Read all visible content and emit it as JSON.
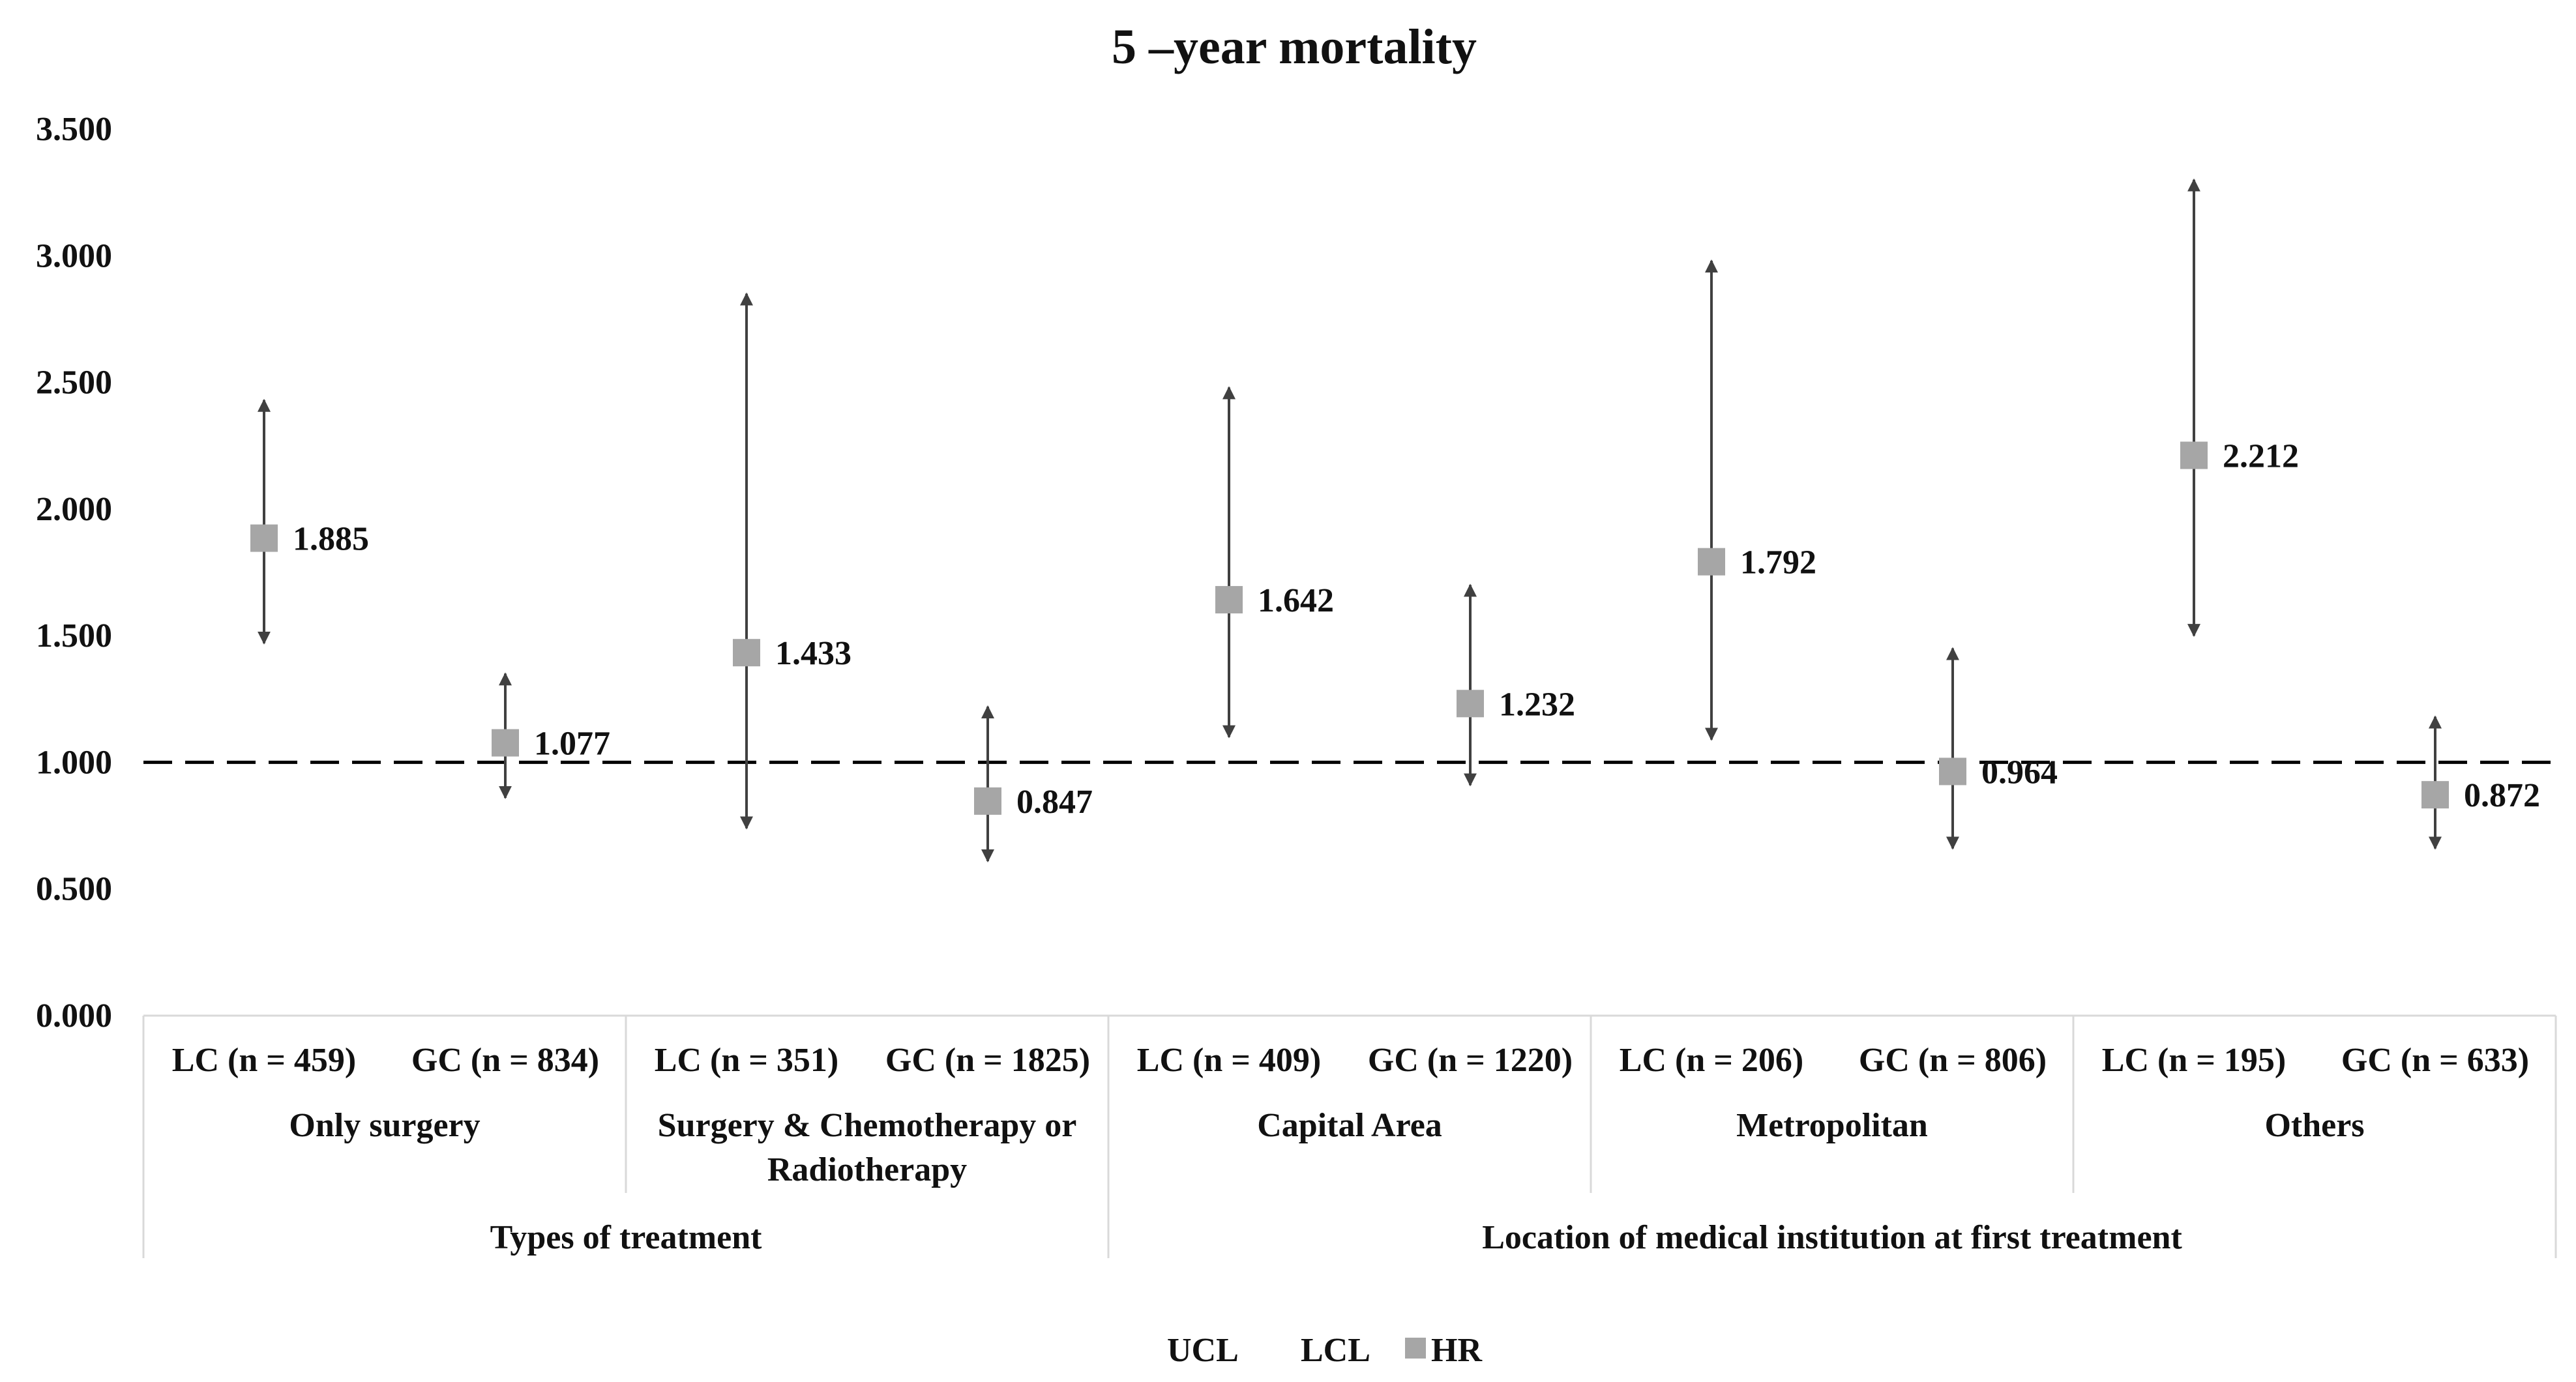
{
  "chart_data": {
    "type": "scatter",
    "title": "5 –year mortality",
    "ylim": [
      0,
      3.5
    ],
    "yticks": [
      "0.000",
      "0.500",
      "1.000",
      "1.500",
      "2.000",
      "2.500",
      "3.000",
      "3.500"
    ],
    "reference_line": 1.0,
    "categories": [
      "LC (n = 459)",
      "GC (n = 834)",
      "LC (n = 351)",
      "GC (n = 1825)",
      "LC  (n = 409)",
      "GC  (n = 1220)",
      "LC  (n = 206)",
      "GC  (n = 806)",
      "LC  (n = 195)",
      "GC  (n = 633)"
    ],
    "groups": [
      {
        "label": "Only surgery",
        "lines": [
          "Only surgery"
        ],
        "categories_start": 0
      },
      {
        "label": "Surgery & Chemotherapy or Radiotherapy",
        "lines": [
          "Surgery & Chemotherapy or",
          "Radiotherapy"
        ],
        "categories_start": 2
      },
      {
        "label": "Capital Area",
        "lines": [
          "Capital Area"
        ],
        "categories_start": 4
      },
      {
        "label": "Metropolitan",
        "lines": [
          "Metropolitan"
        ],
        "categories_start": 6
      },
      {
        "label": "Others",
        "lines": [
          "Others"
        ],
        "categories_start": 8
      }
    ],
    "supergroups": [
      {
        "label": "Types of treatment",
        "group_start": 0,
        "group_count": 2
      },
      {
        "label": "Location of medical institution at first treatment",
        "group_start": 2,
        "group_count": 3
      }
    ],
    "series": [
      {
        "name": "HR",
        "values": [
          1.885,
          1.077,
          1.433,
          0.847,
          1.642,
          1.232,
          1.792,
          0.964,
          2.212,
          0.872
        ],
        "labels": [
          "1.885",
          "1.077",
          "1.433",
          "0.847",
          "1.642",
          "1.232",
          "1.792",
          "0.964",
          "2.212",
          "0.872"
        ]
      },
      {
        "name": "UCL",
        "values": [
          2.43,
          1.35,
          2.85,
          1.22,
          2.48,
          1.7,
          2.98,
          1.45,
          3.3,
          1.18
        ]
      },
      {
        "name": "LCL",
        "values": [
          1.47,
          0.86,
          0.74,
          0.61,
          1.1,
          0.91,
          1.09,
          0.66,
          1.5,
          0.66
        ]
      }
    ],
    "legend": [
      "UCL",
      "LCL",
      "HR"
    ],
    "legend_position": "bottom",
    "colors": {
      "marker": "#a6a6a6",
      "whisker": "#404040",
      "refline": "#000000",
      "grid_axis": "#d9d9d9"
    }
  }
}
